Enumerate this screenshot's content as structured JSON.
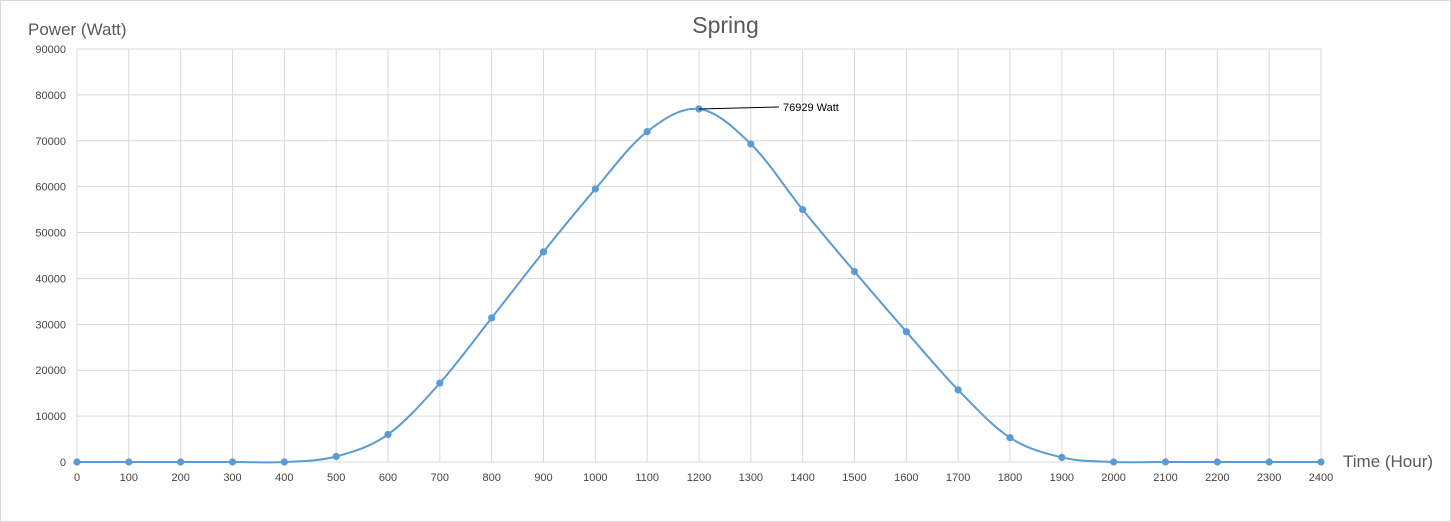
{
  "chart_data": {
    "type": "line",
    "title": "Spring",
    "xlabel": "Time (Hour)",
    "ylabel": "Power (Watt)",
    "x": [
      0,
      100,
      200,
      300,
      400,
      500,
      600,
      700,
      800,
      900,
      1000,
      1100,
      1200,
      1300,
      1400,
      1500,
      1600,
      1700,
      1800,
      1900,
      2000,
      2100,
      2200,
      2300,
      2400
    ],
    "series": [
      {
        "values": [
          0,
          0,
          0,
          0,
          0,
          1200,
          6000,
          17200,
          31400,
          45800,
          59500,
          72000,
          76929,
          69300,
          55000,
          41500,
          28400,
          15700,
          5300,
          1000,
          0,
          0,
          0,
          0,
          0
        ]
      }
    ],
    "xlim": [
      0,
      2400
    ],
    "ylim": [
      0,
      90000
    ],
    "x_ticks": [
      "0",
      "100",
      "200",
      "300",
      "400",
      "500",
      "600",
      "700",
      "800",
      "900",
      "1000",
      "1100",
      "1200",
      "1300",
      "1400",
      "1500",
      "1600",
      "1700",
      "1800",
      "1900",
      "2000",
      "2100",
      "2200",
      "2300",
      "2400"
    ],
    "y_ticks": [
      "0",
      "10000",
      "20000",
      "30000",
      "40000",
      "50000",
      "60000",
      "70000",
      "80000",
      "90000"
    ],
    "grid": true,
    "smooth": true,
    "color": "#5b9bd5",
    "annotation": {
      "x": 1200,
      "y": 76929,
      "text": "76929  Watt"
    }
  }
}
